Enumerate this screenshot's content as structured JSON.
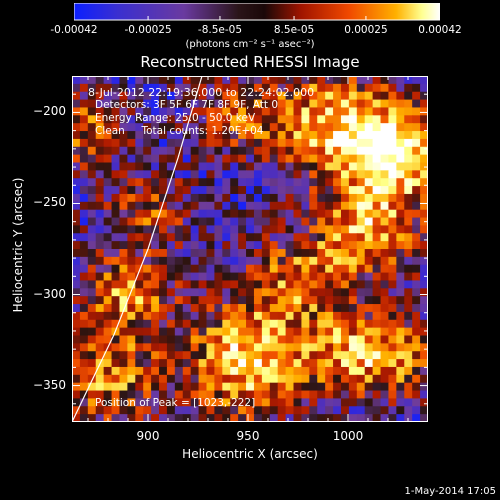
{
  "colorbar": {
    "tick_labels": [
      "-0.00042",
      "-0.00025",
      "-8.5e-05",
      "8.5e-05",
      "0.00025",
      "0.00042"
    ],
    "tick_values": [
      -0.00042,
      -0.00025,
      -8.5e-05,
      8.5e-05,
      0.00025,
      0.00042
    ],
    "range": [
      -0.00042,
      0.00042
    ],
    "units": "(photons cm⁻² s⁻¹ asec⁻²)"
  },
  "plot": {
    "title": "Reconstructed RHESSI Image",
    "info": {
      "time": "8-Jul-2012 22:19:36.000 to 22:24:02.000",
      "detectors": "Detectors: 3F 5F 6F 7F 8F 9F, Att 0",
      "energy": "Energy Range: 25.0 - 50.0 keV",
      "clean": "Clean     Total counts: 1.20E+04"
    },
    "peak": "Position of Peak = [1023,-222]"
  },
  "footer": {
    "timestamp": "1-May-2014 17:05"
  },
  "chart_data": {
    "type": "heatmap",
    "title": "Reconstructed RHESSI Image",
    "xlabel": "Heliocentric X (arcsec)",
    "ylabel": "Heliocentric Y (arcsec)",
    "xlim": [
      862,
      1040
    ],
    "ylim": [
      -370,
      -180
    ],
    "x_ticks": [
      900,
      950,
      1000
    ],
    "y_ticks": [
      -200,
      -250,
      -300,
      -350
    ],
    "x_tick_labels": [
      "900",
      "950",
      "1000"
    ],
    "y_tick_labels": [
      "-200",
      "-250",
      "-300",
      "-350"
    ],
    "peak_position": [
      1023,
      -222
    ],
    "limb_line": [
      [
        862,
        -370
      ],
      [
        883,
        -322
      ],
      [
        900,
        -275
      ],
      [
        915,
        -225
      ],
      [
        927,
        -180
      ]
    ],
    "colormap": [
      "#1020ff",
      "#4b2ec0",
      "#6f3c9a",
      "#2a1410",
      "#b01a00",
      "#f05000",
      "#ffb000",
      "#ffff80",
      "#ffffff"
    ]
  }
}
